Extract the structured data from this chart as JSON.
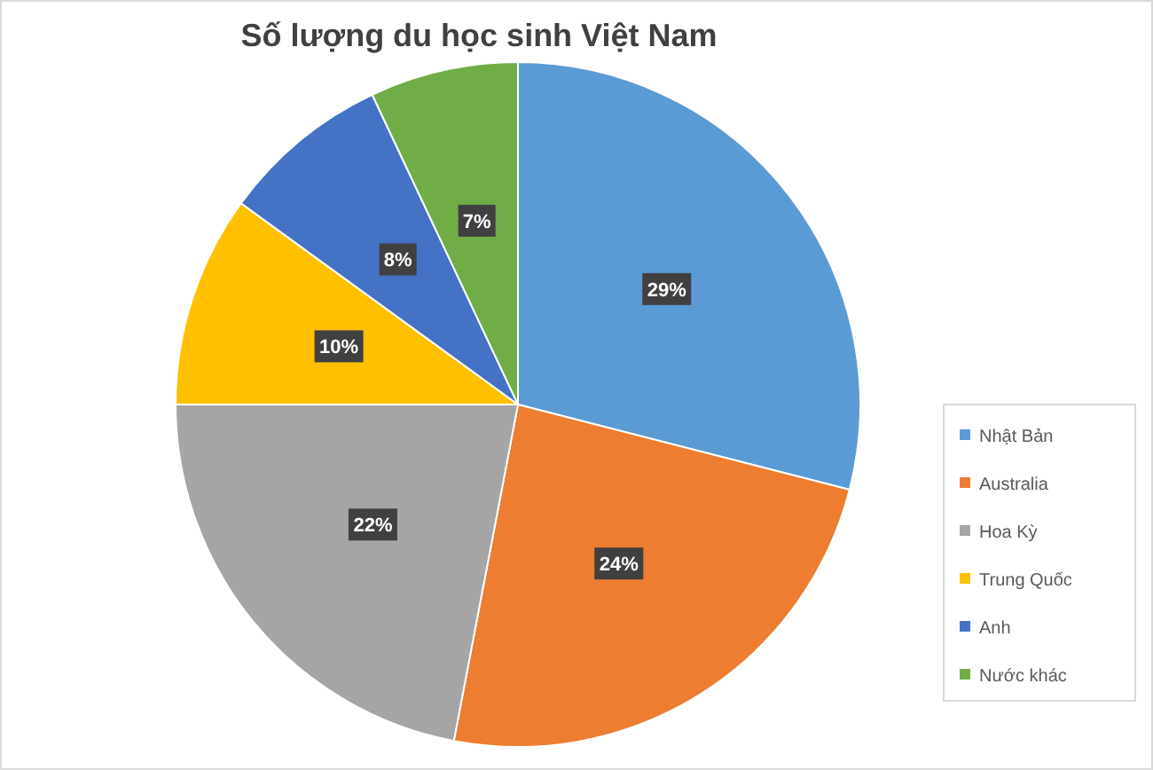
{
  "chart_data": {
    "type": "pie",
    "title": "Số lượng du học sinh Việt Nam",
    "categories": [
      "Nhật Bản",
      "Australia",
      "Hoa Kỳ",
      "Trung Quốc",
      "Anh",
      "Nước khác"
    ],
    "values": [
      29,
      24,
      22,
      10,
      8,
      7
    ],
    "colors": [
      "#5b9bd5",
      "#ed7d31",
      "#a5a5a5",
      "#ffc000",
      "#4472c4",
      "#70ad47"
    ],
    "value_labels": [
      "29%",
      "24%",
      "22%",
      "10%",
      "8%",
      "7%"
    ],
    "legend": "right"
  }
}
